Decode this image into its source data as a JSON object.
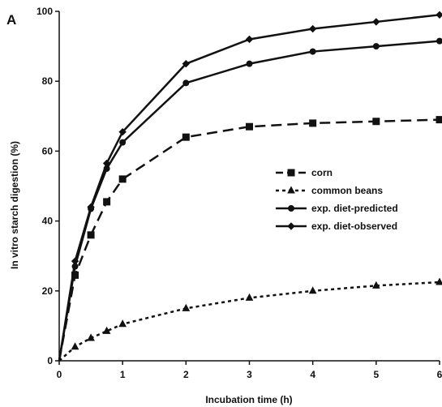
{
  "chart_data": {
    "type": "line",
    "panel_label": "A",
    "title": "",
    "xlabel": "Incubation time (h)",
    "ylabel": "In vitro starch digestion (%)",
    "xlim": [
      0,
      6
    ],
    "ylim": [
      0,
      100
    ],
    "xticks": [
      0,
      1,
      2,
      3,
      4,
      5,
      6
    ],
    "yticks": [
      0,
      20,
      40,
      60,
      80,
      100
    ],
    "grid": false,
    "legend_position": "right",
    "series": [
      {
        "name": "corn",
        "marker": "square",
        "line_style": "dashed",
        "x": [
          0,
          0.25,
          0.5,
          0.75,
          1,
          2,
          3,
          4,
          5,
          6
        ],
        "y": [
          0,
          24.5,
          36,
          45.5,
          52,
          64,
          67,
          68,
          68.5,
          69
        ]
      },
      {
        "name": "common beans",
        "marker": "triangle",
        "line_style": "dotted",
        "x": [
          0,
          0.25,
          0.5,
          0.75,
          1,
          2,
          3,
          4,
          5,
          6
        ],
        "y": [
          0,
          4,
          6.5,
          8.5,
          10.5,
          15,
          18,
          20,
          21.5,
          22.5
        ]
      },
      {
        "name": "exp. diet-predicted",
        "marker": "circle",
        "line_style": "solid",
        "x": [
          0,
          0.25,
          0.5,
          0.75,
          1,
          2,
          3,
          4,
          5,
          6
        ],
        "y": [
          0,
          27,
          43.5,
          55,
          62.5,
          79.5,
          85,
          88.5,
          90,
          91.5
        ]
      },
      {
        "name": "exp. diet-observed",
        "marker": "diamond",
        "line_style": "solid",
        "x": [
          0,
          0.25,
          0.5,
          0.75,
          1,
          2,
          3,
          4,
          5,
          6
        ],
        "y": [
          0,
          28.5,
          44,
          56.5,
          65.5,
          85,
          92,
          95,
          97,
          99
        ]
      }
    ]
  }
}
